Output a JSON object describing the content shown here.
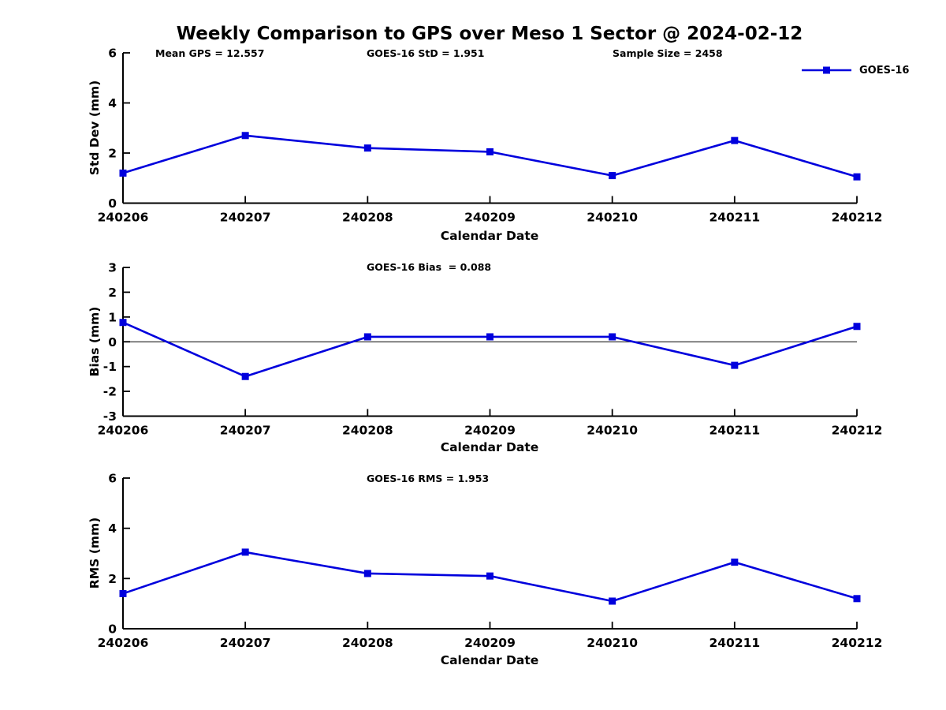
{
  "title": "Weekly Comparison to GPS over Meso 1 Sector @ 2024-02-12",
  "legend": {
    "label": "GOES-16"
  },
  "colors": {
    "line": "#0000dd",
    "axis": "#000000",
    "text": "#000000"
  },
  "x_axis": {
    "label": "Calendar Date",
    "categories": [
      "240206",
      "240207",
      "240208",
      "240209",
      "240210",
      "240211",
      "240212"
    ]
  },
  "chart_data": [
    {
      "type": "line",
      "name": "std-dev-subplot",
      "ylabel": "Std Dev (mm)",
      "xlabel": "Calendar Date",
      "ylim": [
        0,
        6
      ],
      "yticks": [
        0,
        2,
        4,
        6
      ],
      "grid": false,
      "legend_position": "top-right-outside",
      "annotations": [
        "Mean GPS = 12.557",
        "GOES-16 StD = 1.951",
        "Sample Size = 2458"
      ],
      "categories": [
        "240206",
        "240207",
        "240208",
        "240209",
        "240210",
        "240211",
        "240212"
      ],
      "series": [
        {
          "name": "GOES-16",
          "values": [
            1.2,
            2.7,
            2.2,
            2.05,
            1.1,
            2.5,
            1.05
          ]
        }
      ]
    },
    {
      "type": "line",
      "name": "bias-subplot",
      "ylabel": "Bias (mm)",
      "xlabel": "Calendar Date",
      "ylim": [
        -3,
        3
      ],
      "yticks": [
        3,
        2,
        1,
        0,
        -1,
        -2,
        -3
      ],
      "grid": false,
      "zero_line": true,
      "annotations": [
        "GOES-16 Bias  = 0.088"
      ],
      "categories": [
        "240206",
        "240207",
        "240208",
        "240209",
        "240210",
        "240211",
        "240212"
      ],
      "series": [
        {
          "name": "GOES-16",
          "values": [
            0.78,
            -1.4,
            0.2,
            0.2,
            0.2,
            -0.95,
            0.62
          ]
        }
      ]
    },
    {
      "type": "line",
      "name": "rms-subplot",
      "ylabel": "RMS (mm)",
      "xlabel": "Calendar Date",
      "ylim": [
        0,
        6
      ],
      "yticks": [
        0,
        2,
        4,
        6
      ],
      "grid": false,
      "annotations": [
        "GOES-16 RMS = 1.953"
      ],
      "categories": [
        "240206",
        "240207",
        "240208",
        "240209",
        "240210",
        "240211",
        "240212"
      ],
      "series": [
        {
          "name": "GOES-16",
          "values": [
            1.4,
            3.05,
            2.2,
            2.1,
            1.1,
            2.65,
            1.2
          ]
        }
      ]
    }
  ]
}
